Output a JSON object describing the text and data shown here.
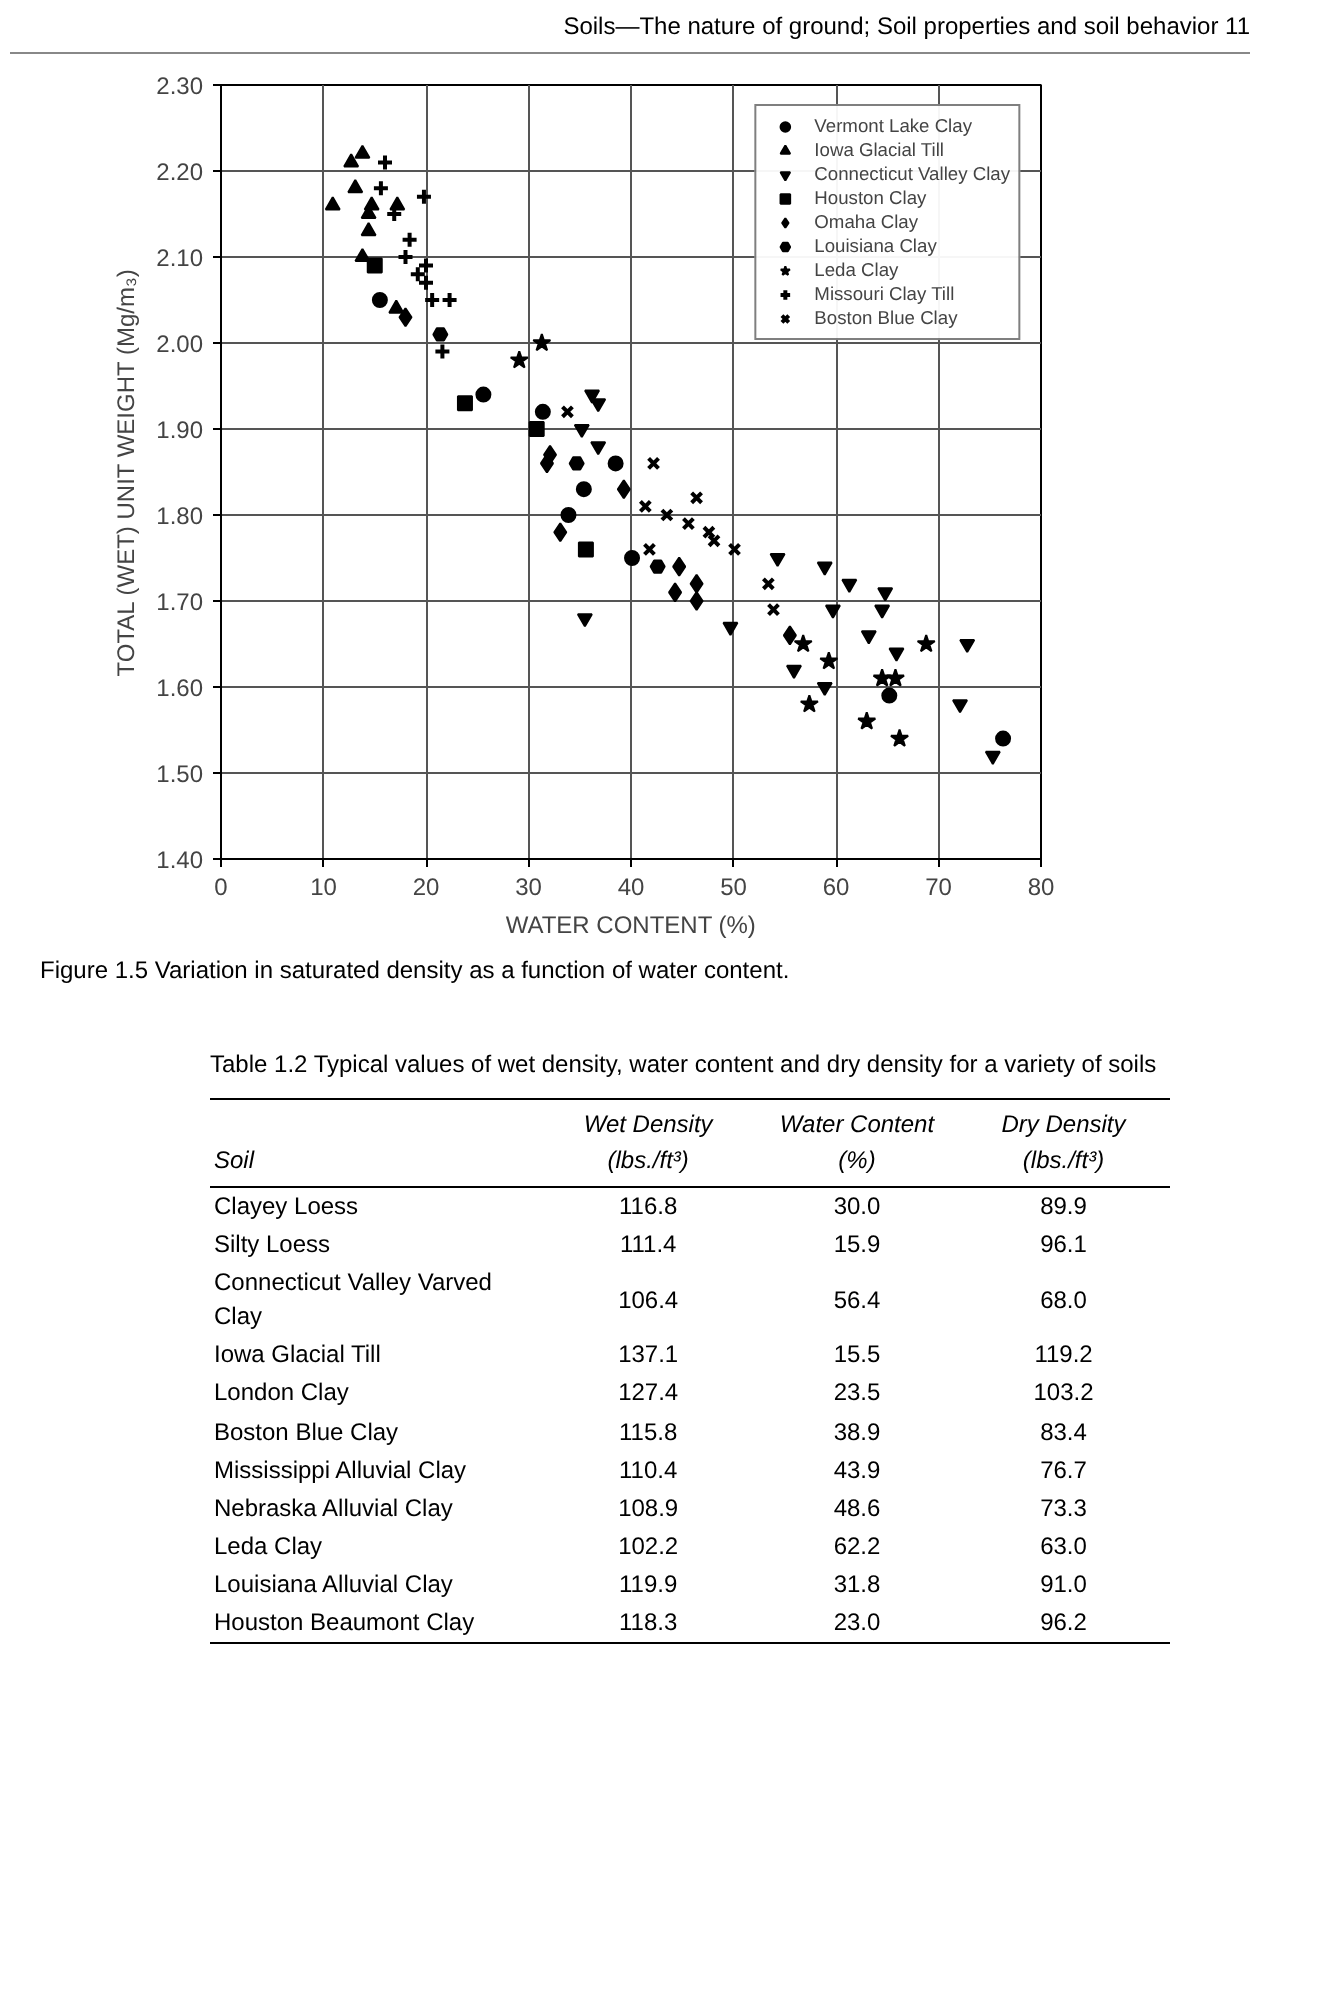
{
  "chart_data": [
    {
      "type": "scatter",
      "xlabel": "WATER CONTENT (%)",
      "ylabel": "TOTAL (WET) UNIT WEIGHT (Mg/m₃)",
      "xlim": [
        0,
        80
      ],
      "xticks": [
        0,
        10,
        20,
        30,
        40,
        50,
        60,
        70,
        80
      ],
      "ylim": [
        1.4,
        2.3
      ],
      "yticks": [
        {
          "value": 1.4,
          "label": "1.40"
        },
        {
          "value": 1.5,
          "label": "1.50"
        },
        {
          "value": 1.6,
          "label": "1.60"
        },
        {
          "value": 1.7,
          "label": "1.70"
        },
        {
          "value": 1.8,
          "label": "1.80"
        },
        {
          "value": 1.9,
          "label": "1.90"
        },
        {
          "value": 2.0,
          "label": "2.00"
        },
        {
          "value": 2.1,
          "label": "2.10"
        },
        {
          "value": 2.2,
          "label": "2.20"
        },
        {
          "value": 2.3,
          "label": "2.30"
        }
      ],
      "grid": true,
      "legend": "top right",
      "annotations": [
        "Soils—The nature of ground; Soil properties and soil behavior   11",
        "Figure 1.5  Variation in saturated density as a function of water content."
      ],
      "series": [
        {
          "name": "Vermont Lake Clay",
          "marker": "circle",
          "color": "#000000",
          "x": [
            15.5,
            25.6,
            31.4,
            35.4,
            33.9,
            40.1,
            38.5,
            65.2,
            76.3
          ],
          "values": [
            2.05,
            1.94,
            1.92,
            1.83,
            1.8,
            1.75,
            1.86,
            1.59,
            1.54
          ]
        },
        {
          "name": "Iowa Glacial Till",
          "marker": "triangle",
          "color": "#000000",
          "x": [
            13.8,
            12.7,
            10.9,
            14.4,
            14.4,
            13.8,
            17.1,
            14.7,
            17.2,
            13.1
          ],
          "values": [
            2.22,
            2.21,
            2.16,
            2.15,
            2.13,
            2.1,
            2.04,
            2.16,
            2.16,
            2.18
          ]
        },
        {
          "name": "Connecticut Valley Clay",
          "color": "#000000",
          "x": [
            36.2,
            36.8,
            35.2,
            36.8,
            35.5,
            49.7,
            54.3,
            58.9,
            61.3,
            64.8,
            64.5,
            59.7,
            63.2,
            65.9,
            72.8,
            55.9,
            58.9,
            72.1,
            75.3
          ],
          "values": [
            1.94,
            1.93,
            1.9,
            1.88,
            1.68,
            1.67,
            1.75,
            1.74,
            1.72,
            1.71,
            1.69,
            1.69,
            1.66,
            1.64,
            1.65,
            1.62,
            1.6,
            1.58,
            1.52
          ]
        },
        {
          "name": "Houston Clay",
          "marker": "square",
          "color": "#000000",
          "x": [
            15.0,
            23.8,
            30.8,
            35.6
          ],
          "values": [
            2.09,
            1.93,
            1.9,
            1.76
          ]
        },
        {
          "name": "Omaha Clay",
          "marker": "diamond",
          "color": "#000000",
          "x": [
            18.0,
            32.1,
            31.8,
            33.1,
            39.3,
            44.3,
            46.4,
            46.4,
            44.7,
            55.5
          ],
          "values": [
            2.03,
            1.87,
            1.86,
            1.78,
            1.83,
            1.71,
            1.72,
            1.7,
            1.74,
            1.66
          ]
        },
        {
          "name": "Louisiana Clay",
          "color": "#000000",
          "x": [
            21.4,
            34.7,
            42.6
          ],
          "values": [
            2.01,
            1.86,
            1.74
          ]
        },
        {
          "name": "Leda Clay",
          "marker": "star",
          "color": "#000000",
          "x": [
            29.1,
            31.3,
            68.8,
            56.8,
            59.3,
            64.5,
            57.4,
            63.0,
            66.2,
            65.8
          ],
          "values": [
            1.98,
            2.0,
            1.65,
            1.65,
            1.63,
            1.61,
            1.58,
            1.56,
            1.54,
            1.61
          ]
        },
        {
          "name": "Missouri Clay Till",
          "marker": "cross",
          "color": "#000000",
          "x": [
            19.8,
            16.9,
            18.4,
            18.0,
            20.0,
            19.2,
            20.0,
            20.6,
            22.3,
            21.6,
            16.0,
            15.6
          ],
          "values": [
            2.17,
            2.15,
            2.12,
            2.1,
            2.09,
            2.08,
            2.07,
            2.05,
            2.05,
            1.99,
            2.21,
            2.18
          ]
        },
        {
          "name": "Boston Blue Clay",
          "marker": "x",
          "color": "#000000",
          "x": [
            33.8,
            42.2,
            41.4,
            43.5,
            46.4,
            41.8,
            45.6,
            48.1,
            50.1,
            47.6,
            53.9,
            53.4
          ],
          "values": [
            1.92,
            1.86,
            1.81,
            1.8,
            1.82,
            1.76,
            1.79,
            1.77,
            1.76,
            1.78,
            1.69,
            1.72
          ]
        }
      ]
    },
    {
      "type": "other",
      "title": "Table 1.2  Typical values of wet density, water content and dry density for a variety of soils",
      "xlabel": "Soil",
      "categories": [
        "Clayey Loess",
        "Silty Loess",
        "Connecticut Valley Varved Clay",
        "Iowa Glacial Till",
        "London Clay",
        "Boston Blue Clay",
        "Mississippi Alluvial Clay",
        "Nebraska Alluvial Clay",
        "Leda Clay",
        "Louisiana Alluvial Clay",
        "Houston Beaumont Clay"
      ],
      "series": [
        {
          "name": "Wet Density (lbs./ft³)",
          "values": [
            116.8,
            111.4,
            106.4,
            137.1,
            127.4,
            115.8,
            110.4,
            108.9,
            102.2,
            119.9,
            118.3
          ],
          "value_labels": [
            "116.8",
            "111.4",
            "106.4",
            "137.1",
            "127.4",
            "115.8",
            "110.4",
            "108.9",
            "102.2",
            "119.9",
            "118.3"
          ]
        },
        {
          "name": "Water Content (%)",
          "values": [
            30.0,
            15.9,
            56.4,
            15.5,
            23.5,
            38.9,
            43.9,
            48.6,
            62.2,
            31.8,
            23.0
          ],
          "value_labels": [
            "30.0",
            "15.9",
            "56.4",
            "15.5",
            "23.5",
            "38.9",
            "43.9",
            "48.6",
            "62.2",
            "31.8",
            "23.0"
          ]
        },
        {
          "name": "Dry Density (lbs./ft³)",
          "values": [
            89.9,
            96.1,
            68.0,
            119.2,
            103.2,
            83.4,
            76.7,
            73.3,
            63.0,
            91.0,
            96.2
          ],
          "value_labels": [
            "89.9",
            "96.1",
            "68.0",
            "119.2",
            "103.2",
            "83.4",
            "76.7",
            "73.3",
            "63.0",
            "91.0",
            "96.2"
          ]
        }
      ]
    }
  ]
}
